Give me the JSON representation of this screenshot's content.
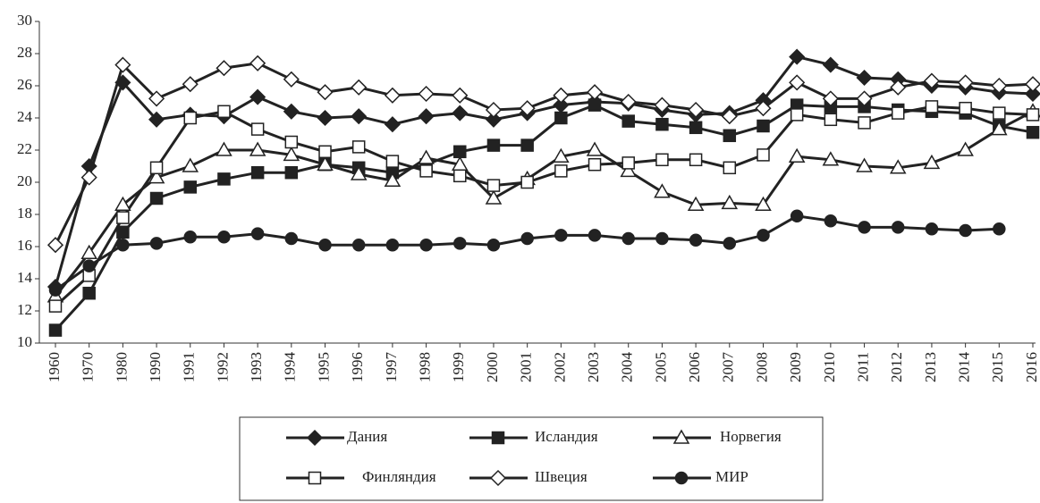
{
  "chart_data": {
    "type": "line",
    "categories": [
      "1960",
      "1970",
      "1980",
      "1990",
      "1991",
      "1992",
      "1993",
      "1994",
      "1995",
      "1996",
      "1997",
      "1998",
      "1999",
      "2000",
      "2001",
      "2002",
      "2003",
      "2004",
      "2005",
      "2006",
      "2007",
      "2008",
      "2009",
      "2010",
      "2011",
      "2012",
      "2013",
      "2014",
      "2015",
      "2016"
    ],
    "ylim": [
      10,
      30
    ],
    "yticks": [
      10,
      12,
      14,
      16,
      18,
      20,
      22,
      24,
      26,
      28,
      30
    ],
    "grid": false,
    "series": [
      {
        "name": "Дания",
        "color": "#222222",
        "marker": "diamond",
        "marker_fill": "filled",
        "values": [
          13.5,
          21.0,
          26.2,
          23.9,
          24.2,
          24.1,
          25.3,
          24.4,
          24.0,
          24.1,
          23.6,
          24.1,
          24.3,
          23.9,
          24.3,
          24.8,
          25.0,
          24.9,
          24.5,
          24.2,
          24.3,
          25.1,
          27.8,
          27.3,
          26.5,
          26.4,
          26.0,
          25.9,
          25.6,
          25.5
        ]
      },
      {
        "name": "Исландия",
        "color": "#222222",
        "marker": "square",
        "marker_fill": "filled",
        "values": [
          10.8,
          13.1,
          16.9,
          19.0,
          19.7,
          20.2,
          20.6,
          20.6,
          21.1,
          20.9,
          20.6,
          21.1,
          21.9,
          22.3,
          22.3,
          24.0,
          24.8,
          23.8,
          23.6,
          23.4,
          22.9,
          23.5,
          24.8,
          24.7,
          24.7,
          24.5,
          24.4,
          24.3,
          23.5,
          23.1
        ]
      },
      {
        "name": "Норвегия",
        "color": "#222222",
        "marker": "triangle",
        "marker_fill": "open",
        "values": [
          12.9,
          15.6,
          18.6,
          20.3,
          21.0,
          22.0,
          22.0,
          21.7,
          21.1,
          20.5,
          20.1,
          21.5,
          21.1,
          19.0,
          20.2,
          21.6,
          22.0,
          20.7,
          19.4,
          18.6,
          18.7,
          18.6,
          21.6,
          21.4,
          21.0,
          20.9,
          21.2,
          22.0,
          23.3,
          24.4
        ]
      },
      {
        "name": "Финляндия",
        "color": "#222222",
        "marker": "square",
        "marker_fill": "open",
        "values": [
          12.3,
          14.2,
          17.8,
          20.9,
          24.0,
          24.4,
          23.3,
          22.5,
          21.9,
          22.2,
          21.3,
          20.7,
          20.4,
          19.8,
          20.0,
          20.7,
          21.1,
          21.2,
          21.4,
          21.4,
          20.9,
          21.7,
          24.2,
          23.9,
          23.7,
          24.3,
          24.7,
          24.6,
          24.3,
          24.2
        ]
      },
      {
        "name": "Швеция",
        "color": "#222222",
        "marker": "diamond",
        "marker_fill": "open",
        "values": [
          16.1,
          20.3,
          27.3,
          25.2,
          26.1,
          27.1,
          27.4,
          26.4,
          25.6,
          25.9,
          25.4,
          25.5,
          25.4,
          24.5,
          24.6,
          25.4,
          25.6,
          25.0,
          24.8,
          24.5,
          24.1,
          24.6,
          26.2,
          25.2,
          25.2,
          25.9,
          26.3,
          26.2,
          26.0,
          26.1
        ]
      },
      {
        "name": "МИР",
        "color": "#222222",
        "marker": "circle",
        "marker_fill": "filled",
        "values": [
          13.3,
          14.8,
          16.1,
          16.2,
          16.6,
          16.6,
          16.8,
          16.5,
          16.1,
          16.1,
          16.1,
          16.1,
          16.2,
          16.1,
          16.5,
          16.7,
          16.7,
          16.5,
          16.5,
          16.4,
          16.2,
          16.7,
          17.9,
          17.6,
          17.2,
          17.2,
          17.1,
          17.0,
          17.1,
          null
        ]
      }
    ]
  }
}
